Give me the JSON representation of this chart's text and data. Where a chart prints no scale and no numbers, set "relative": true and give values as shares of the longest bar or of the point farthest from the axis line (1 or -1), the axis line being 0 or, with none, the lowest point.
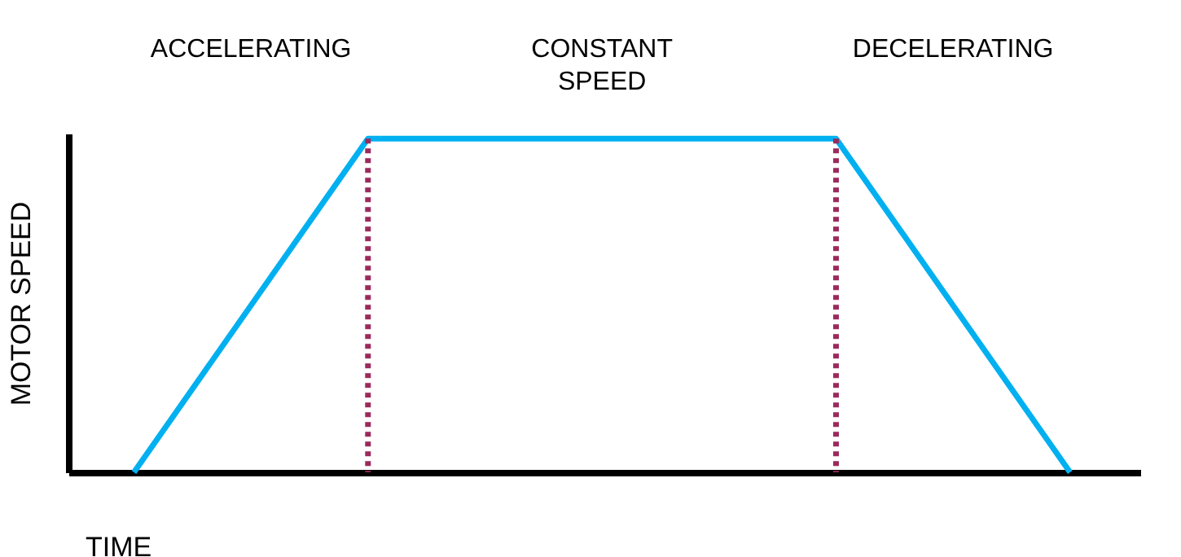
{
  "chart_data": {
    "type": "line",
    "relative": true,
    "xlabel": "TIME",
    "ylabel": "MOTOR SPEED",
    "categories": [
      null,
      null,
      null,
      null,
      null
    ],
    "series": [
      {
        "color": "#00b0f0",
        "values": [
          0,
          1,
          1,
          1,
          0
        ]
      }
    ],
    "annotations": [
      "ACCELERATING",
      "CONSTANT SPEED",
      "DECELERATING"
    ],
    "marker": "none",
    "line_style": "solid"
  }
}
